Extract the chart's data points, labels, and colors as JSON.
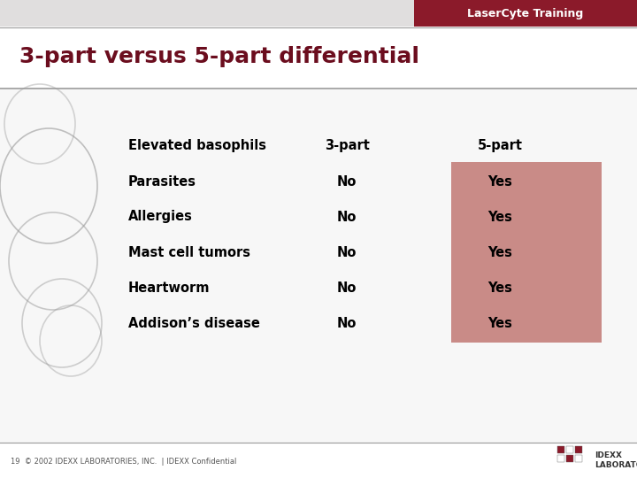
{
  "header_bg": "#8b1a2a",
  "header_text": "LaserCyte Training",
  "header_text_color": "#ffffff",
  "title": "3-part versus 5-part differential",
  "title_color": "#6b0d1e",
  "title_fontsize": 18,
  "rows": [
    {
      "label": "Elevated basophils",
      "col3": "3-part",
      "col5": "5-part",
      "is_header": true
    },
    {
      "label": "Parasites",
      "col3": "No",
      "col5": "Yes",
      "is_header": false
    },
    {
      "label": "Allergies",
      "col3": "No",
      "col5": "Yes",
      "is_header": false
    },
    {
      "label": "Mast cell tumors",
      "col3": "No",
      "col5": "Yes",
      "is_header": false
    },
    {
      "label": "Heartworm",
      "col3": "No",
      "col5": "Yes",
      "is_header": false
    },
    {
      "label": "Addison’s disease",
      "col3": "No",
      "col5": "Yes",
      "is_header": false
    }
  ],
  "highlight_color": "#c98b87",
  "table_text_color": "#000000",
  "footer_text": "19  © 2002 IDEXX LABORATORIES, INC.  | IDEXX Confidential",
  "footer_color": "#555555",
  "slide_bg": "#ffffff",
  "top_bar_bg": "#e0dede",
  "border_color": "#9b9b9b"
}
